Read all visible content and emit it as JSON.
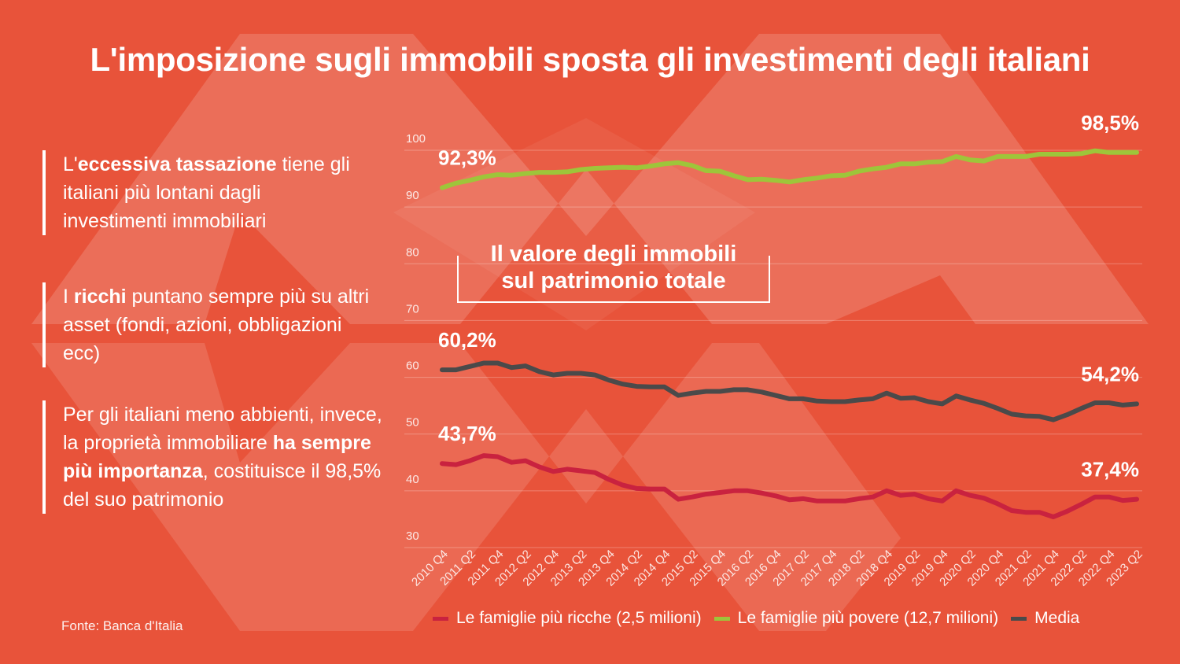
{
  "title": "L'imposizione sugli immobili sposta gli investimenti degli italiani",
  "notes": {
    "n1_pre": "L'",
    "n1_bold": "eccessiva tassazione",
    "n1_post": " tiene gli italiani più lontani dagli investimenti immobiliari",
    "n2_pre": "I ",
    "n2_bold": "ricchi",
    "n2_post": " puntano sempre più su altri asset (fondi, azioni, obbligazioni ecc)",
    "n3_pre": "Per gli italiani meno abbienti, invece, la proprietà immobiliare ",
    "n3_bold": "ha sempre più importanza",
    "n3_post": ", costituisce il 98,5% del suo patrimonio"
  },
  "source": "Fonte:  Banca d'Italia",
  "chart_data": {
    "type": "line",
    "title": "Il valore degli immobili sul patrimonio totale",
    "title_line1": "Il valore degli immobili",
    "title_line2": "sul patrimonio totale",
    "xlabel": "",
    "ylabel": "",
    "ylim": [
      30,
      100
    ],
    "yticks": [
      30,
      40,
      50,
      60,
      70,
      80,
      90,
      100
    ],
    "grid": true,
    "legend_position": "bottom",
    "x": [
      "2010 Q4",
      "2011 Q1",
      "2011 Q2",
      "2011 Q3",
      "2011 Q4",
      "2012 Q1",
      "2012 Q2",
      "2012 Q3",
      "2012 Q4",
      "2013 Q1",
      "2013 Q2",
      "2013 Q3",
      "2013 Q4",
      "2014 Q1",
      "2014 Q2",
      "2014 Q3",
      "2014 Q4",
      "2015 Q1",
      "2015 Q2",
      "2015 Q3",
      "2015 Q4",
      "2016 Q1",
      "2016 Q2",
      "2016 Q3",
      "2016 Q4",
      "2017 Q1",
      "2017 Q2",
      "2017 Q3",
      "2017 Q4",
      "2018 Q1",
      "2018 Q2",
      "2018 Q3",
      "2018 Q4",
      "2019 Q1",
      "2019 Q2",
      "2019 Q3",
      "2019 Q4",
      "2020 Q1",
      "2020 Q2",
      "2020 Q3",
      "2020 Q4",
      "2021 Q1",
      "2021 Q2",
      "2021 Q3",
      "2021 Q4",
      "2022 Q1",
      "2022 Q2",
      "2022 Q3",
      "2022 Q4",
      "2023 Q1",
      "2023 Q2"
    ],
    "x_tick_labels": [
      "2010 Q4",
      "2011 Q2",
      "2011 Q4",
      "2012 Q2",
      "2012 Q4",
      "2013 Q2",
      "2013 Q4",
      "2014 Q2",
      "2014 Q4",
      "2015 Q2",
      "2015 Q4",
      "2016 Q2",
      "2016 Q4",
      "2017 Q2",
      "2017 Q4",
      "2018 Q2",
      "2018 Q4",
      "2019 Q2",
      "2019 Q4",
      "2020 Q2",
      "2020 Q4",
      "2021 Q2",
      "2021 Q4",
      "2022 Q2",
      "2022 Q4",
      "2023 Q2"
    ],
    "series": [
      {
        "name": "Le famiglie più ricche (2,5 milioni)",
        "color": "#c9223f",
        "values": [
          43.7,
          43.5,
          44.2,
          45.1,
          44.9,
          43.9,
          44.2,
          43.1,
          42.3,
          42.7,
          42.4,
          42.1,
          40.9,
          39.9,
          39.3,
          39.2,
          39.2,
          37.4,
          37.8,
          38.3,
          38.6,
          38.9,
          38.9,
          38.5,
          38.0,
          37.3,
          37.5,
          37.1,
          37.1,
          37.1,
          37.5,
          37.8,
          38.9,
          38.1,
          38.3,
          37.5,
          37.1,
          38.9,
          38.1,
          37.6,
          36.6,
          35.4,
          35.1,
          35.1,
          34.3,
          35.3,
          36.5,
          37.8,
          37.8,
          37.2,
          37.4
        ]
      },
      {
        "name": "Le famiglie più povere (12,7 milioni)",
        "color": "#9ec53a",
        "values": [
          92.3,
          93.1,
          93.6,
          94.2,
          94.6,
          94.5,
          94.8,
          95.0,
          95.0,
          95.1,
          95.5,
          95.7,
          95.8,
          95.9,
          95.8,
          96.1,
          96.5,
          96.7,
          96.2,
          95.3,
          95.2,
          94.4,
          93.7,
          93.8,
          93.6,
          93.3,
          93.7,
          94.0,
          94.4,
          94.5,
          95.2,
          95.6,
          95.9,
          96.5,
          96.5,
          96.8,
          96.9,
          97.8,
          97.2,
          97.0,
          97.8,
          97.8,
          97.8,
          98.2,
          98.2,
          98.2,
          98.3,
          98.8,
          98.5,
          98.5,
          98.5
        ]
      },
      {
        "name": "Media",
        "color": "#4a4a4a",
        "values": [
          60.2,
          60.2,
          60.8,
          61.4,
          61.4,
          60.6,
          60.9,
          59.9,
          59.3,
          59.6,
          59.6,
          59.3,
          58.4,
          57.7,
          57.3,
          57.2,
          57.2,
          55.7,
          56.1,
          56.4,
          56.4,
          56.7,
          56.7,
          56.3,
          55.7,
          55.1,
          55.1,
          54.7,
          54.6,
          54.6,
          54.9,
          55.1,
          56.1,
          55.2,
          55.3,
          54.6,
          54.2,
          55.6,
          54.9,
          54.3,
          53.4,
          52.4,
          52.1,
          52.0,
          51.4,
          52.3,
          53.4,
          54.4,
          54.4,
          54.0,
          54.2
        ]
      }
    ],
    "annotations": [
      {
        "text": "92,3%",
        "series": 1,
        "at": "start"
      },
      {
        "text": "98,5%",
        "series": 1,
        "at": "end"
      },
      {
        "text": "60,2%",
        "series": 2,
        "at": "start"
      },
      {
        "text": "54,2%",
        "series": 2,
        "at": "end"
      },
      {
        "text": "43,7%",
        "series": 0,
        "at": "start"
      },
      {
        "text": "37,4%",
        "series": 0,
        "at": "end"
      }
    ]
  }
}
